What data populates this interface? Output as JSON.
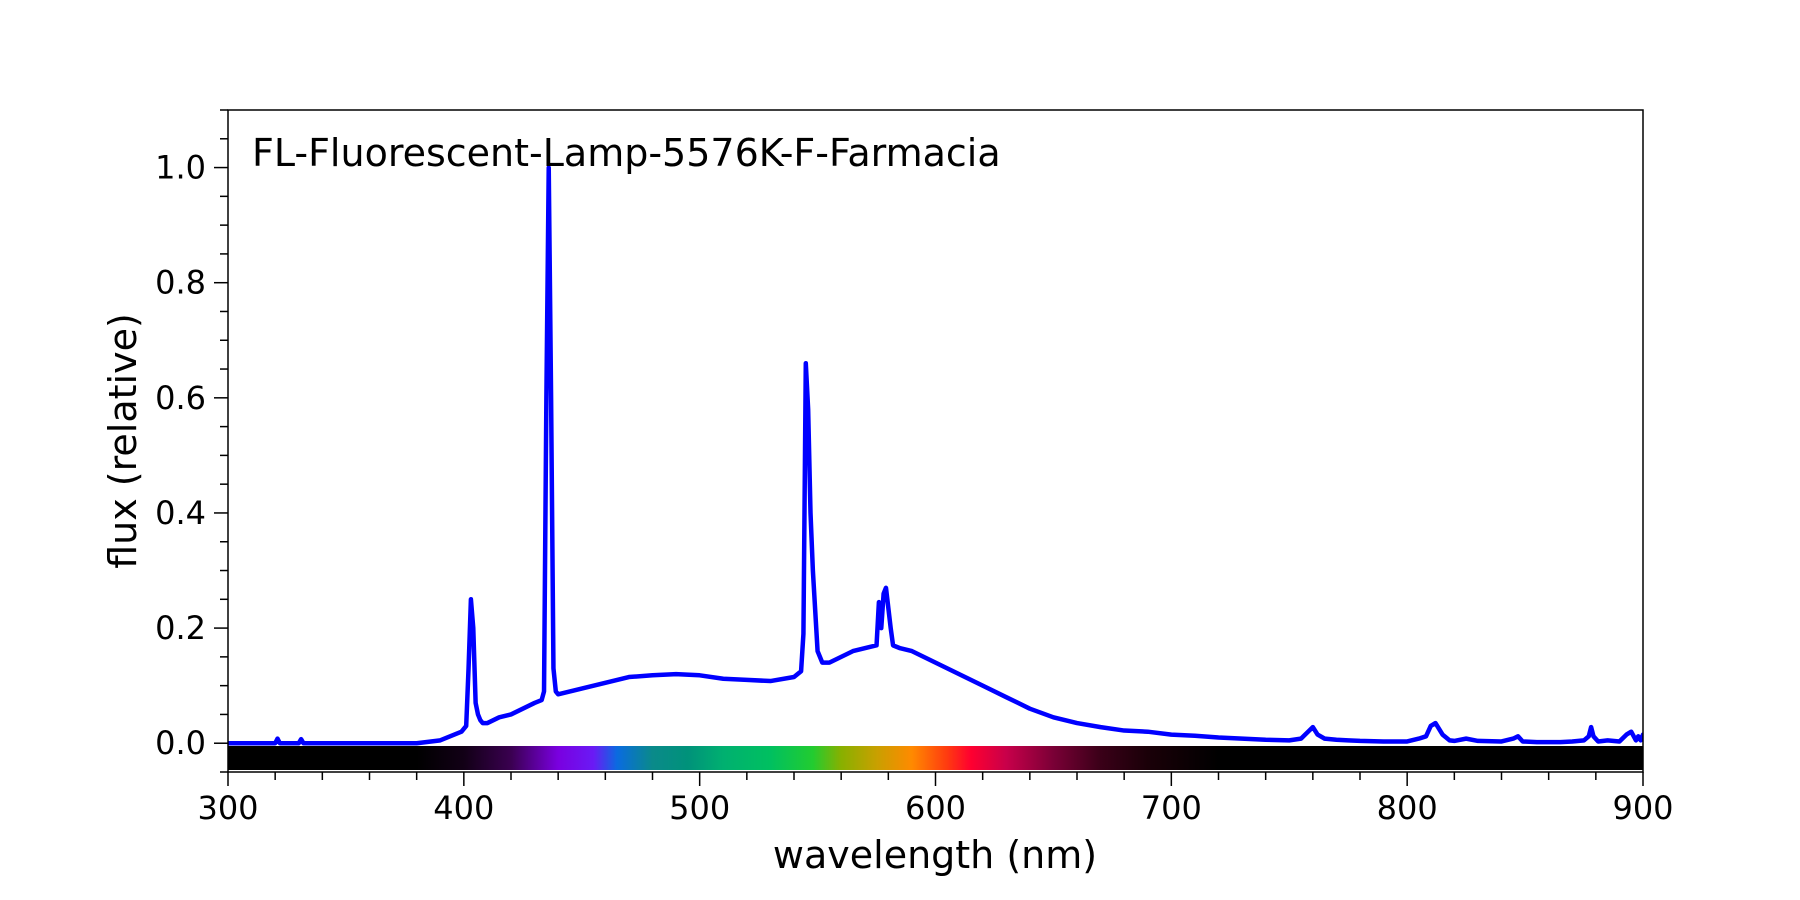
{
  "chart_data": {
    "type": "line",
    "title": "FL-Fluorescent-Lamp-5576K-F-Farmacia",
    "xlabel": "wavelength (nm)",
    "ylabel": "flux (relative)",
    "xlim": [
      300,
      900
    ],
    "ylim": [
      -0.05,
      1.1
    ],
    "x_ticks": [
      300,
      400,
      500,
      600,
      700,
      800,
      900
    ],
    "x_tick_labels": [
      "300",
      "400",
      "500",
      "600",
      "700",
      "800",
      "900"
    ],
    "y_ticks": [
      0.0,
      0.2,
      0.4,
      0.6,
      0.8,
      1.0
    ],
    "y_tick_labels": [
      "0.0",
      "0.2",
      "0.4",
      "0.6",
      "0.8",
      "1.0"
    ],
    "grid": false,
    "spectrum_bar": true,
    "series": [
      {
        "color": "#0000ff",
        "x": [
          300,
          310,
          320,
          321,
          322,
          330,
          331,
          332,
          340,
          350,
          360,
          370,
          380,
          390,
          393,
          396,
          399,
          401,
          402,
          403,
          404,
          405,
          406,
          407,
          408,
          410,
          415,
          420,
          425,
          430,
          433,
          434,
          435,
          436,
          437,
          438,
          439,
          440,
          445,
          450,
          460,
          470,
          480,
          490,
          500,
          510,
          520,
          530,
          540,
          543,
          544,
          545,
          546,
          547,
          548,
          550,
          552,
          555,
          560,
          565,
          570,
          575,
          576,
          577,
          578,
          579,
          580,
          581,
          582,
          585,
          590,
          600,
          610,
          620,
          630,
          640,
          650,
          660,
          670,
          680,
          690,
          700,
          710,
          720,
          730,
          740,
          750,
          755,
          758,
          760,
          762,
          765,
          770,
          775,
          780,
          790,
          800,
          805,
          808,
          810,
          812,
          815,
          818,
          820,
          825,
          830,
          840,
          845,
          847,
          849,
          855,
          865,
          870,
          875,
          877,
          878,
          879,
          881,
          885,
          890,
          893,
          895,
          897,
          898,
          899,
          900
        ],
        "y": [
          0.0,
          0.0,
          0.0,
          0.008,
          0.0,
          0.0,
          0.007,
          0.0,
          0.0,
          0.0,
          0.0,
          0.0,
          0.0,
          0.005,
          0.01,
          0.015,
          0.02,
          0.03,
          0.13,
          0.25,
          0.2,
          0.07,
          0.05,
          0.04,
          0.035,
          0.035,
          0.045,
          0.05,
          0.06,
          0.07,
          0.075,
          0.09,
          0.6,
          1.0,
          0.6,
          0.13,
          0.09,
          0.085,
          0.09,
          0.095,
          0.105,
          0.115,
          0.118,
          0.12,
          0.118,
          0.112,
          0.11,
          0.108,
          0.115,
          0.125,
          0.19,
          0.66,
          0.58,
          0.4,
          0.3,
          0.16,
          0.14,
          0.14,
          0.15,
          0.16,
          0.165,
          0.17,
          0.245,
          0.2,
          0.26,
          0.27,
          0.235,
          0.2,
          0.17,
          0.165,
          0.16,
          0.14,
          0.12,
          0.1,
          0.08,
          0.06,
          0.045,
          0.035,
          0.028,
          0.022,
          0.02,
          0.015,
          0.013,
          0.01,
          0.008,
          0.006,
          0.005,
          0.008,
          0.02,
          0.028,
          0.015,
          0.008,
          0.006,
          0.005,
          0.004,
          0.003,
          0.003,
          0.008,
          0.012,
          0.03,
          0.035,
          0.015,
          0.005,
          0.004,
          0.008,
          0.004,
          0.003,
          0.008,
          0.012,
          0.003,
          0.002,
          0.002,
          0.003,
          0.005,
          0.012,
          0.028,
          0.012,
          0.003,
          0.005,
          0.003,
          0.015,
          0.02,
          0.005,
          0.012,
          0.005,
          0.015
        ]
      }
    ]
  }
}
